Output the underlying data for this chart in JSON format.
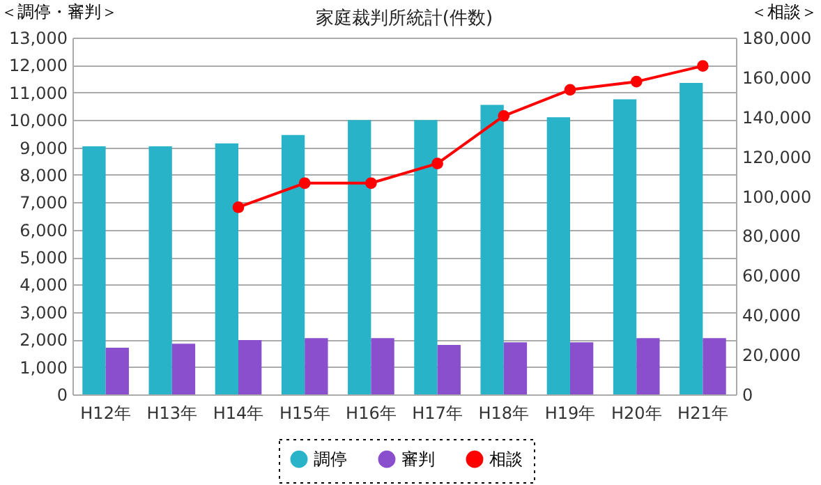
{
  "chart_data": {
    "type": "bar",
    "title": "家庭裁判所統計(件数)",
    "ylabel": "＜調停・審判＞",
    "y2label": "＜相談＞",
    "categories": [
      "H12年",
      "H13年",
      "H14年",
      "H15年",
      "H16年",
      "H17年",
      "H18年",
      "H19年",
      "H20年",
      "H21年"
    ],
    "series": [
      {
        "name": "調停",
        "color": "#29b3c9",
        "values": [
          9040,
          9040,
          9150,
          9450,
          10000,
          10000,
          10550,
          10100,
          10750,
          11350
        ]
      },
      {
        "name": "審判",
        "color": "#8a4fcc",
        "values": [
          1700,
          1850,
          1980,
          2050,
          2050,
          1800,
          1900,
          1900,
          2050,
          2050
        ]
      },
      {
        "name": "相談",
        "type": "line",
        "axis": "y2",
        "color": "#ff0000",
        "values": [
          null,
          null,
          94400,
          106600,
          106600,
          116500,
          140500,
          153700,
          157800,
          165700
        ]
      }
    ],
    "ylim": [
      0,
      13000
    ],
    "yticks": [
      0,
      {
        "value": 1000,
        "label": "1,000"
      },
      {
        "value": 2000,
        "label": "2,000"
      },
      {
        "value": 3000,
        "label": "3,000"
      },
      {
        "value": 4000,
        "label": "4,000"
      },
      {
        "value": 5000,
        "label": "5,000"
      },
      {
        "value": 6000,
        "label": "6,000"
      },
      {
        "value": 7000,
        "label": "7,000"
      },
      {
        "value": 8000,
        "label": "8,000"
      },
      {
        "value": 9000,
        "label": "9,000"
      },
      {
        "value": 10000,
        "label": "10,000"
      },
      {
        "value": 11000,
        "label": "11,000"
      },
      {
        "value": 12000,
        "label": "12,000"
      },
      {
        "value": 13000,
        "label": "13,000"
      }
    ],
    "y2lim": [
      0,
      180000
    ],
    "y2ticks": [
      0,
      {
        "value": 20000,
        "label": "20,000"
      },
      {
        "value": 40000,
        "label": "40,000"
      },
      {
        "value": 60000,
        "label": "60,000"
      },
      {
        "value": 80000,
        "label": "80,000"
      },
      {
        "value": 100000,
        "label": "100,000"
      },
      {
        "value": 120000,
        "label": "120,000"
      },
      {
        "value": 140000,
        "label": "140,000"
      },
      {
        "value": 160000,
        "label": "160,000"
      },
      {
        "value": 180000,
        "label": "180,000"
      }
    ],
    "grid": "y",
    "legend": "bottom",
    "marker": "circle"
  }
}
